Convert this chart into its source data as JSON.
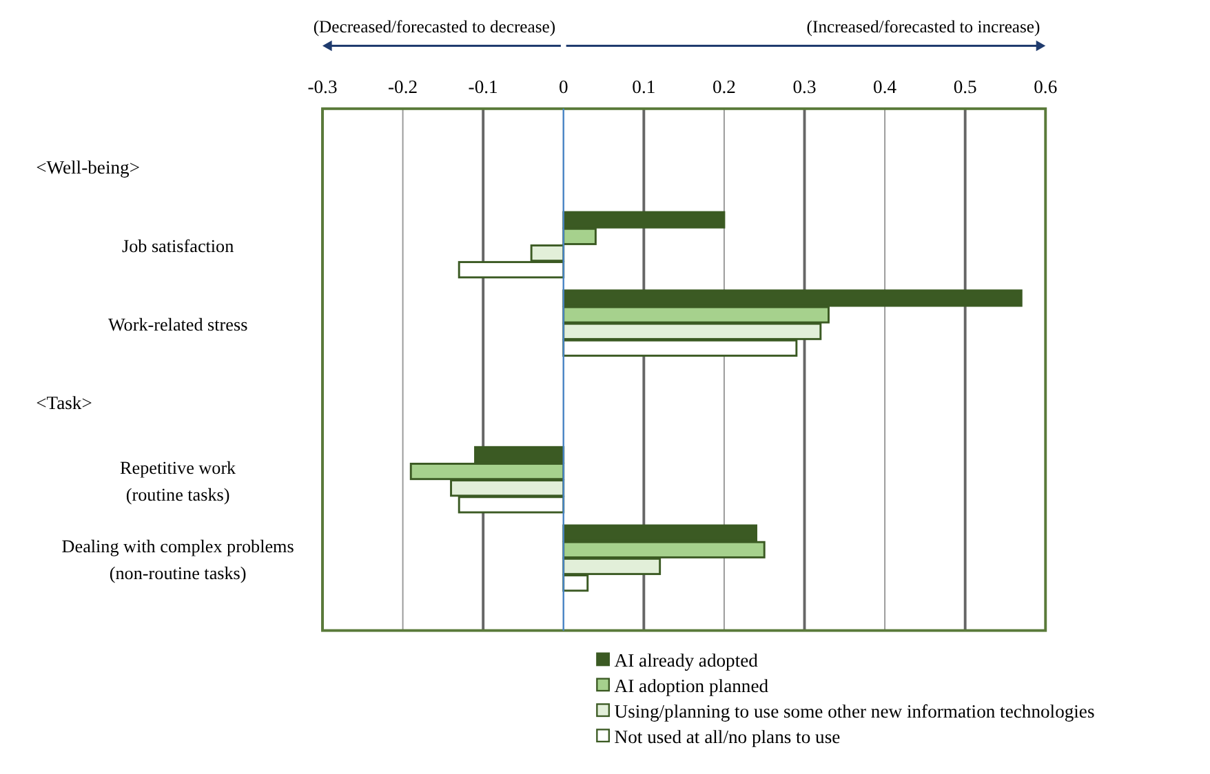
{
  "chart_data": {
    "type": "bar",
    "orientation": "horizontal",
    "categories": [
      "Job satisfaction",
      "Work-related stress",
      "Repetitive work\n(routine tasks)",
      "Dealing with complex problems\n(non-routine tasks)"
    ],
    "series": [
      {
        "name": "AI already adopted",
        "color": "#3b5a23",
        "values": [
          0.2,
          0.57,
          -0.11,
          0.24
        ]
      },
      {
        "name": "AI adoption planned",
        "color": "#a6d18d",
        "values": [
          0.04,
          0.33,
          -0.19,
          0.25
        ]
      },
      {
        "name": "Using/planning to use some other new information technologies",
        "color": "#e2efd9",
        "values": [
          -0.04,
          0.32,
          -0.14,
          0.12
        ]
      },
      {
        "name": "Not used at all/no plans to use",
        "color": "#ffffff",
        "values": [
          -0.13,
          0.29,
          -0.13,
          0.03
        ]
      }
    ],
    "xlim": [
      -0.3,
      0.6
    ],
    "xticks": [
      -0.3,
      -0.2,
      -0.1,
      0,
      0.1,
      0.2,
      0.3,
      0.4,
      0.5,
      0.6
    ],
    "grid": "x",
    "legend": "bottom",
    "ref_lines": [
      {
        "axis": "x",
        "value": 0,
        "color": "#4a86c8"
      }
    ],
    "annotations": [
      "(Decreased/forecasted to decrease)",
      "(Increased/forecasted to increase)",
      "<Well-being>",
      "<Task>"
    ]
  }
}
